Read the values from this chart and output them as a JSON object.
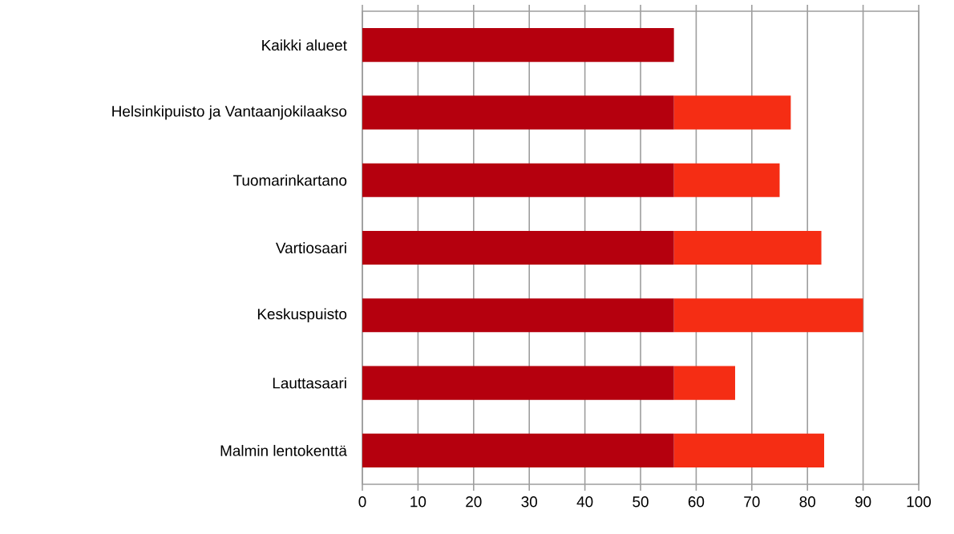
{
  "chart_data": {
    "type": "bar",
    "orientation": "horizontal",
    "stacked": true,
    "categories": [
      "Kaikki alueet",
      "Helsinkipuisto ja Vantaanjokilaakso",
      "Tuomarinkartano",
      "Vartiosaari",
      "Keskuspuisto",
      "Lauttasaari",
      "Malmin lentokenttä"
    ],
    "series": [
      {
        "color": "#b5000e",
        "values": [
          56,
          56,
          56,
          56,
          56,
          56,
          56
        ]
      },
      {
        "color": "#f52d14",
        "values": [
          null,
          21,
          19,
          26.5,
          34,
          11,
          27
        ]
      }
    ],
    "xlim": [
      0,
      100
    ],
    "xticks": [
      0,
      10,
      20,
      30,
      40,
      50,
      60,
      70,
      80,
      90,
      100
    ],
    "grid": "x"
  }
}
